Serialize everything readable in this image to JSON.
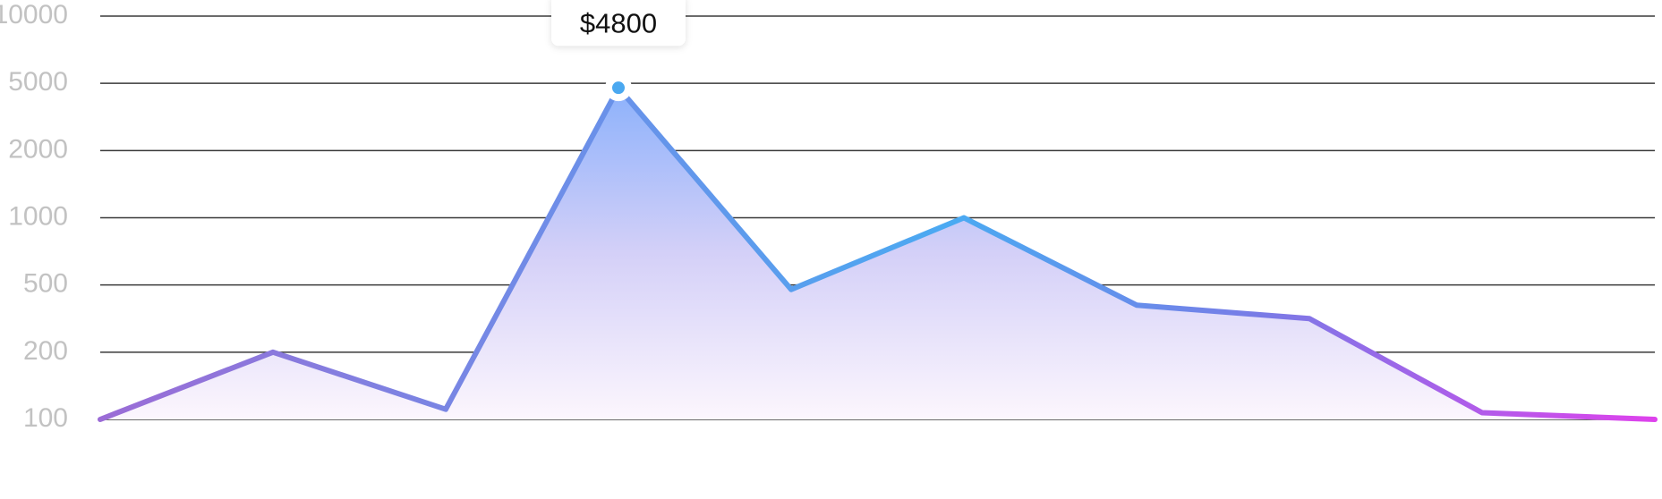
{
  "chart_data": {
    "type": "area",
    "categories": [
      null,
      null,
      null,
      null,
      null,
      null,
      null,
      null,
      null,
      null
    ],
    "values": [
      100,
      200,
      115,
      4800,
      480,
      1000,
      410,
      350,
      110,
      100
    ],
    "value_labels": [
      null,
      null,
      null,
      "$4800",
      null,
      null,
      null,
      null,
      null,
      null
    ],
    "ylim": [
      100,
      10000
    ],
    "yticks": [
      100,
      200,
      500,
      1000,
      2000,
      5000,
      10000
    ],
    "grid": true,
    "color": "#4aa8f0"
  }
}
